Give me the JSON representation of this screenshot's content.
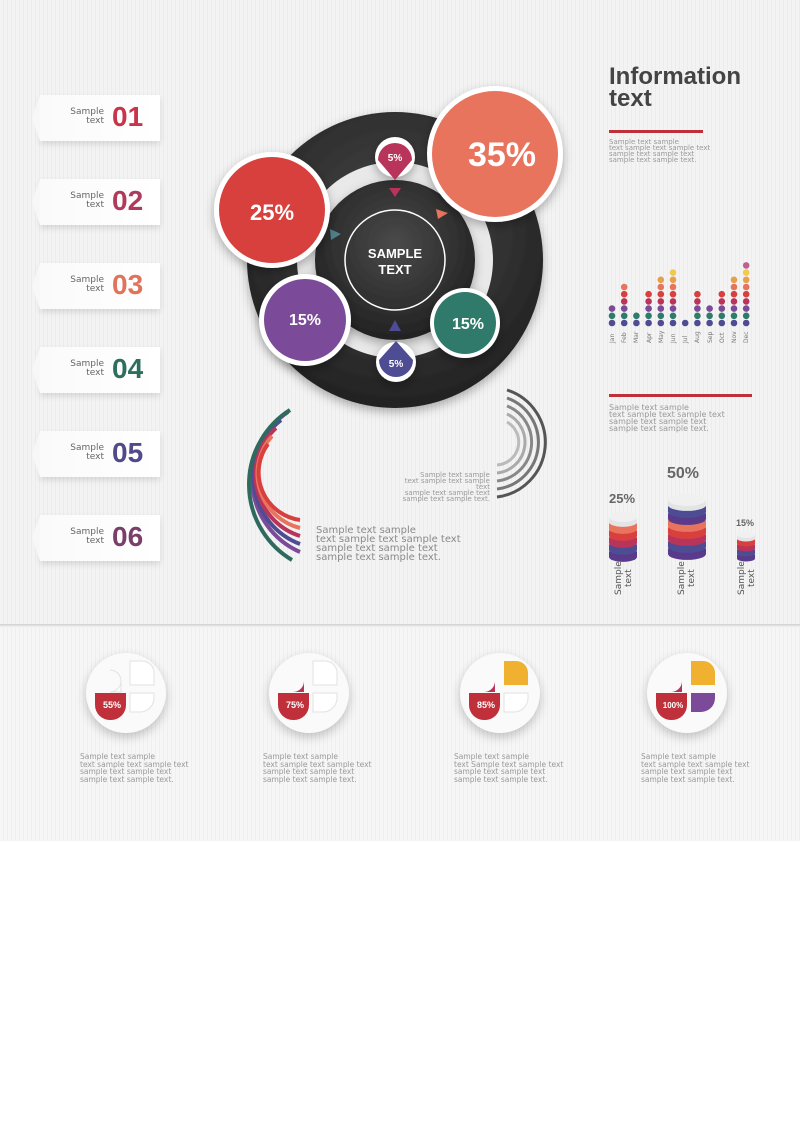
{
  "tabs": [
    {
      "label": "Sample\ntext",
      "num": "01",
      "color": "#c8344a"
    },
    {
      "label": "Sample\ntext",
      "num": "02",
      "color": "#b03a5b"
    },
    {
      "label": "Sample\ntext",
      "num": "03",
      "color": "#e0735a"
    },
    {
      "label": "Sample\ntext",
      "num": "04",
      "color": "#2e6e5e"
    },
    {
      "label": "Sample\ntext",
      "num": "05",
      "color": "#4f4a8a"
    },
    {
      "label": "Sample\ntext",
      "num": "06",
      "color": "#7a3e6a"
    }
  ],
  "center": {
    "line1": "SAMPLE",
    "line2": "TEXT"
  },
  "bubbles": [
    {
      "value": "35%",
      "color": "#e8745e"
    },
    {
      "value": "25%",
      "color": "#d8403e"
    },
    {
      "value": "15%",
      "color": "#7b4a98"
    },
    {
      "value": "15%",
      "color": "#2f7a6a"
    },
    {
      "value": "5%",
      "color": "#b8345a"
    },
    {
      "value": "5%",
      "color": "#4e4c92"
    }
  ],
  "info": {
    "title": "Information\ntext",
    "text1": "Sample text sample\ntext sample text sample text\nsample text sample text\nsample text  sample text.",
    "text2": "Sample text sample\ntext sample text sample text\nsample text sample text\nsample text  sample text.",
    "text_arcs_left": "Sample text sample\ntext sample text sample text\nsample text sample text\nsample text  sample text.",
    "text_arcs_right": "Sample text sample\ntext sample text sample text\nsample text sample text\nsample text  sample text.",
    "accent": "#c0303a"
  },
  "chart_data": {
    "type": "bar",
    "categories": [
      "Jan",
      "Feb",
      "Mar",
      "Apr",
      "May",
      "Jun",
      "Jul",
      "Aug",
      "Sep",
      "Oct",
      "Nov",
      "Dec"
    ],
    "values": [
      3,
      6,
      2,
      5,
      7,
      8,
      1,
      5,
      3,
      5,
      7,
      9
    ]
  },
  "stacks": [
    {
      "value": "25%",
      "label": "Sample\ntext"
    },
    {
      "value": "50%",
      "label": "Sample\ntext"
    },
    {
      "value": "15%",
      "label": "Sample\ntext"
    }
  ],
  "percent_cards": [
    {
      "value": "55%",
      "filled": 1,
      "text": "Sample text sample\ntext sample text sample text\nsample text sample text\nsample text  sample text."
    },
    {
      "value": "75%",
      "filled": 2,
      "text": "Sample text sample\ntext sample text sample text\nsample text sample text\nsample text  sample text."
    },
    {
      "value": "85%",
      "filled": 3,
      "text": "Sample text sample\ntext Sample text sample text\nsample text sample text\nsample text  sample text."
    },
    {
      "value": "100%",
      "filled": 4,
      "text": "Sample text sample\ntext sample text sample text\nsample text sample text\nsample text  sample text."
    }
  ]
}
